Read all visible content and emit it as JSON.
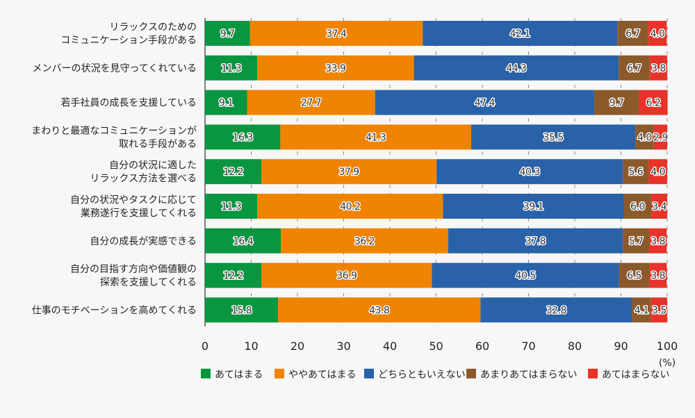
{
  "chart_data": {
    "type": "bar",
    "orientation": "horizontal",
    "stacked": true,
    "categories": [
      [
        "リラックスのための",
        "コミュニケーション手段がある"
      ],
      [
        "メンバーの状況を見守ってくれている"
      ],
      [
        "若手社員の成長を支援している"
      ],
      [
        "まわりと最適なコミュニケーションが",
        "取れる手段がある"
      ],
      [
        "自分の状況に適した",
        "リラックス方法を選べる"
      ],
      [
        "自分の状況やタスクに応じて",
        "業務遂行を支援してくれる"
      ],
      [
        "自分の成長が実感できる"
      ],
      [
        "自分の目指す方向や価値観の",
        "探索を支援してくれる"
      ],
      [
        "仕事のモチベーションを高めてくれる"
      ]
    ],
    "series": [
      {
        "name": "あてはまる",
        "color": "#0a9640",
        "values": [
          9.7,
          11.3,
          9.1,
          16.3,
          12.2,
          11.3,
          16.4,
          12.2,
          15.8
        ]
      },
      {
        "name": "ややあてはまる",
        "color": "#f08300",
        "values": [
          37.4,
          33.9,
          27.7,
          41.3,
          37.9,
          40.2,
          36.2,
          36.9,
          43.8
        ]
      },
      {
        "name": "どちらともいえない",
        "color": "#2962a8",
        "values": [
          42.1,
          44.3,
          47.4,
          35.5,
          40.3,
          39.1,
          37.8,
          40.5,
          32.8
        ]
      },
      {
        "name": "あまりあてはまらない",
        "color": "#8b5a2b",
        "values": [
          6.7,
          6.7,
          9.7,
          4.0,
          5.6,
          6.0,
          5.7,
          6.5,
          4.1
        ]
      },
      {
        "name": "あてはまらない",
        "color": "#e8332a",
        "values": [
          4.0,
          3.8,
          6.2,
          2.9,
          4.0,
          3.4,
          3.8,
          3.8,
          3.5
        ]
      }
    ],
    "xlim": [
      0,
      100
    ],
    "xticks": [
      "0",
      "10",
      "20",
      "30",
      "40",
      "50",
      "60",
      "70",
      "80",
      "90",
      "100"
    ],
    "xunit": "(%)",
    "grid": "vertical dashed",
    "legend_position": "bottom"
  }
}
